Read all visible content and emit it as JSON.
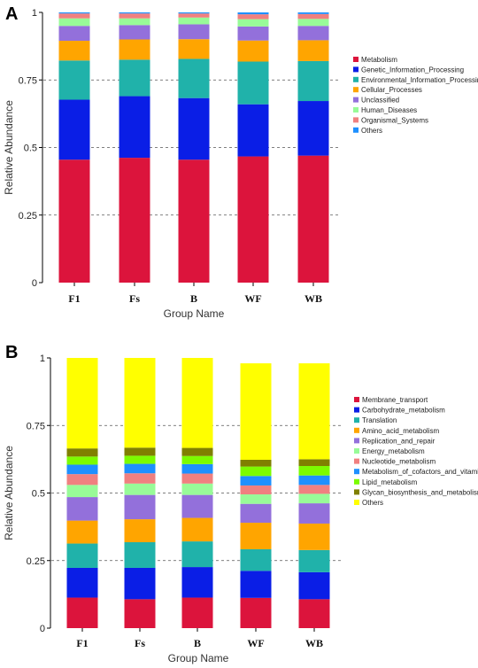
{
  "chart_data": [
    {
      "type": "bar",
      "stacked": true,
      "panel_label": "A",
      "categories": [
        "F1",
        "Fs",
        "B",
        "WF",
        "WB"
      ],
      "ylabel": "Relative Abundance",
      "xlabel": "Group Name",
      "ylim": [
        0,
        1
      ],
      "yticks": [
        "0",
        "0.25",
        "0.5",
        "0.75",
        "1"
      ],
      "grid": "dashed horizontal at 0.25, 0.5, 0.75",
      "legend_position": "right",
      "series": [
        {
          "name": "Metabolism",
          "color": "#dc143c",
          "values": [
            0.455,
            0.462,
            0.455,
            0.467,
            0.47
          ]
        },
        {
          "name": "Genetic_Information_Processing",
          "color": "#0a1ee6",
          "values": [
            0.222,
            0.228,
            0.228,
            0.193,
            0.202
          ]
        },
        {
          "name": "Environmental_Information_Processing",
          "color": "#20b2aa",
          "values": [
            0.145,
            0.135,
            0.145,
            0.158,
            0.148
          ]
        },
        {
          "name": "Cellular_Processes",
          "color": "#ffa500",
          "values": [
            0.073,
            0.075,
            0.073,
            0.078,
            0.077
          ]
        },
        {
          "name": "Unclassified",
          "color": "#9370db",
          "values": [
            0.055,
            0.053,
            0.055,
            0.052,
            0.053
          ]
        },
        {
          "name": "Human_Diseases",
          "color": "#98fb98",
          "values": [
            0.028,
            0.025,
            0.025,
            0.027,
            0.026
          ]
        },
        {
          "name": "Organismal_Systems",
          "color": "#f08080",
          "values": [
            0.018,
            0.018,
            0.015,
            0.018,
            0.018
          ]
        },
        {
          "name": "Others",
          "color": "#1e90ff",
          "values": [
            0.004,
            0.004,
            0.004,
            0.007,
            0.006
          ]
        }
      ]
    },
    {
      "type": "bar",
      "stacked": true,
      "panel_label": "B",
      "categories": [
        "F1",
        "Fs",
        "B",
        "WF",
        "WB"
      ],
      "ylabel": "Relative Abundance",
      "xlabel": "Group Name",
      "ylim": [
        0,
        1
      ],
      "yticks": [
        "0",
        "0.25",
        "0.5",
        "0.75",
        "1"
      ],
      "grid": "dashed horizontal at 0.25, 0.5, 0.75",
      "legend_position": "right",
      "series": [
        {
          "name": "Membrane_transport",
          "color": "#dc143c",
          "values": [
            0.113,
            0.107,
            0.113,
            0.112,
            0.107
          ]
        },
        {
          "name": "Carbohydrate_metabolism",
          "color": "#0a1ee6",
          "values": [
            0.11,
            0.116,
            0.113,
            0.1,
            0.1
          ]
        },
        {
          "name": "Translation",
          "color": "#20b2aa",
          "values": [
            0.09,
            0.095,
            0.095,
            0.08,
            0.082
          ]
        },
        {
          "name": "Amino_acid_metabolism",
          "color": "#ffa500",
          "values": [
            0.085,
            0.085,
            0.087,
            0.098,
            0.098
          ]
        },
        {
          "name": "Replication_and_repair",
          "color": "#9370db",
          "values": [
            0.087,
            0.09,
            0.085,
            0.07,
            0.075
          ]
        },
        {
          "name": "Energy_metabolism",
          "color": "#98fb98",
          "values": [
            0.045,
            0.042,
            0.042,
            0.035,
            0.035
          ]
        },
        {
          "name": "Nucleotide_metabolism",
          "color": "#f08080",
          "values": [
            0.04,
            0.038,
            0.037,
            0.033,
            0.033
          ]
        },
        {
          "name": "Metabolism_of_cofactors_and_vitamins",
          "color": "#1e90ff",
          "values": [
            0.035,
            0.035,
            0.035,
            0.035,
            0.035
          ]
        },
        {
          "name": "Lipid_metabolism",
          "color": "#7cfc00",
          "values": [
            0.03,
            0.03,
            0.03,
            0.035,
            0.035
          ]
        },
        {
          "name": "Glycan_biosynthesis_and_metabolism",
          "color": "#808000",
          "values": [
            0.03,
            0.03,
            0.03,
            0.025,
            0.025
          ]
        },
        {
          "name": "Others",
          "color": "#ffff00",
          "values": [
            0.335,
            0.332,
            0.333,
            0.357,
            0.355
          ]
        }
      ]
    }
  ]
}
